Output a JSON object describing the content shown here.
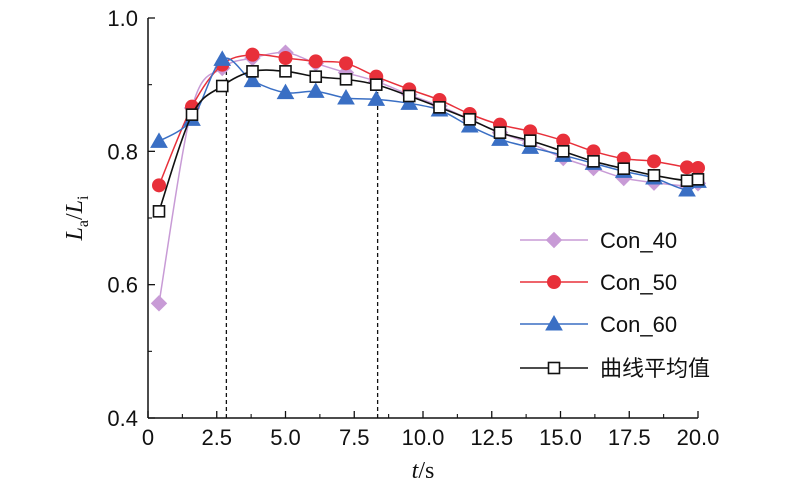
{
  "chart_data": {
    "type": "line",
    "xlabel": {
      "var": "t",
      "unit": "/s"
    },
    "ylabel": {
      "num": "L",
      "num_sub": "a",
      "sep": "/",
      "den": "L",
      "den_sub": "i"
    },
    "xlim": [
      0,
      20
    ],
    "ylim": [
      0.4,
      1.0
    ],
    "xticks": [
      "0",
      "2.5",
      "5.0",
      "7.5",
      "10.0",
      "12.5",
      "15.0",
      "17.5",
      "20.0"
    ],
    "yticks": [
      "0.4",
      "0.6",
      "0.8",
      "1.0"
    ],
    "grid": false,
    "legend_position": "bottom-right",
    "reference_lines_x": [
      2.85,
      8.35
    ],
    "series": [
      {
        "name": "Con_40",
        "color": "#c89bd6",
        "marker": "diamond",
        "x": [
          0.4,
          1.6,
          2.7,
          3.8,
          5.0,
          6.1,
          7.2,
          8.3,
          9.5,
          10.6,
          11.7,
          12.8,
          13.9,
          15.1,
          16.2,
          17.3,
          18.4,
          19.6,
          20.0
        ],
        "y": [
          0.572,
          0.865,
          0.925,
          0.94,
          0.948,
          0.932,
          0.918,
          0.905,
          0.885,
          0.868,
          0.848,
          0.828,
          0.812,
          0.79,
          0.775,
          0.76,
          0.753,
          0.748,
          0.752
        ]
      },
      {
        "name": "Con_50",
        "color": "#e8303a",
        "marker": "circle",
        "x": [
          0.4,
          1.6,
          2.7,
          3.8,
          5.0,
          6.1,
          7.2,
          8.3,
          9.5,
          10.6,
          11.7,
          12.8,
          13.9,
          15.1,
          16.2,
          17.3,
          18.4,
          19.6,
          20.0
        ],
        "y": [
          0.749,
          0.867,
          0.93,
          0.945,
          0.94,
          0.935,
          0.932,
          0.912,
          0.893,
          0.877,
          0.856,
          0.84,
          0.83,
          0.816,
          0.8,
          0.789,
          0.785,
          0.776,
          0.775
        ]
      },
      {
        "name": "Con_60",
        "color": "#3a6fc4",
        "marker": "triangle",
        "x": [
          0.4,
          1.6,
          2.7,
          3.8,
          5.0,
          6.1,
          7.2,
          8.3,
          9.5,
          10.6,
          11.7,
          12.8,
          13.9,
          15.1,
          16.2,
          17.3,
          18.4,
          19.6,
          20.0
        ],
        "y": [
          0.815,
          0.848,
          0.938,
          0.906,
          0.888,
          0.89,
          0.88,
          0.878,
          0.872,
          0.862,
          0.838,
          0.818,
          0.806,
          0.794,
          0.782,
          0.77,
          0.76,
          0.742,
          0.755
        ]
      },
      {
        "name": "曲线平均值",
        "color": "#111111",
        "marker": "square-open",
        "x": [
          0.4,
          1.6,
          2.7,
          3.8,
          5.0,
          6.1,
          7.2,
          8.3,
          9.5,
          10.6,
          11.7,
          12.8,
          13.9,
          15.1,
          16.2,
          17.3,
          18.4,
          19.6,
          20.0
        ],
        "y": [
          0.71,
          0.855,
          0.898,
          0.92,
          0.92,
          0.912,
          0.908,
          0.9,
          0.883,
          0.866,
          0.848,
          0.828,
          0.816,
          0.8,
          0.785,
          0.774,
          0.764,
          0.756,
          0.758
        ]
      }
    ]
  }
}
